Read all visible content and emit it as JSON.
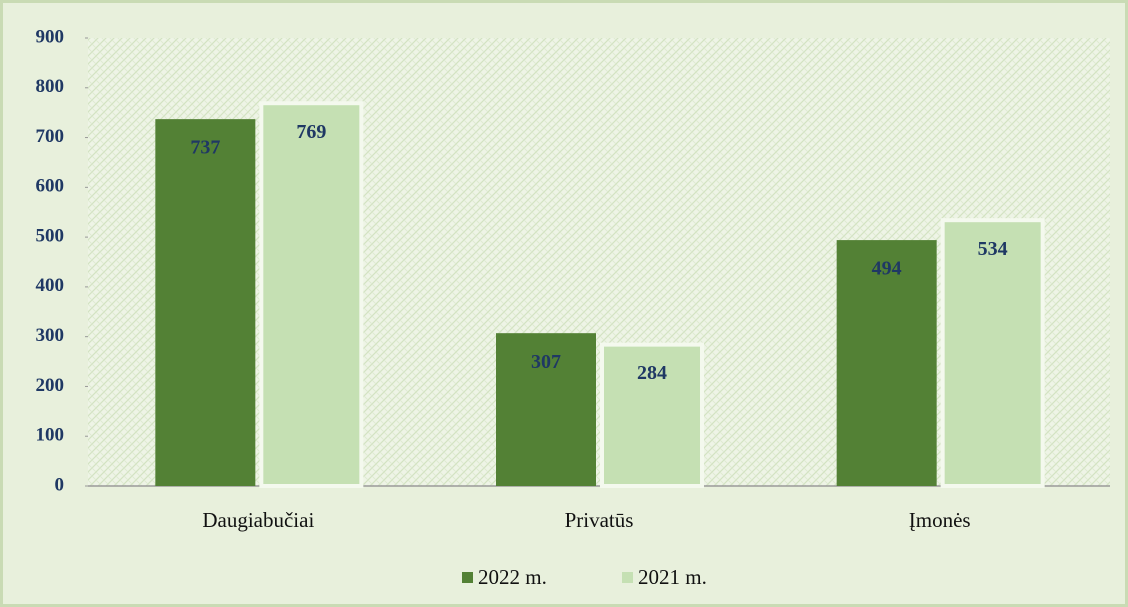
{
  "chart_data": {
    "type": "bar",
    "categories": [
      "Daugiabučiai",
      "Privatūs",
      "Įmonės"
    ],
    "series": [
      {
        "name": "2022 m.",
        "color": "#538135",
        "values": [
          737,
          307,
          494
        ]
      },
      {
        "name": "2021 m.",
        "color": "#c5e0b3",
        "values": [
          769,
          284,
          534
        ]
      }
    ],
    "ylim": [
      0,
      900
    ],
    "yticks": [
      0,
      100,
      200,
      300,
      400,
      500,
      600,
      700,
      800,
      900
    ],
    "legend": "bottom"
  }
}
